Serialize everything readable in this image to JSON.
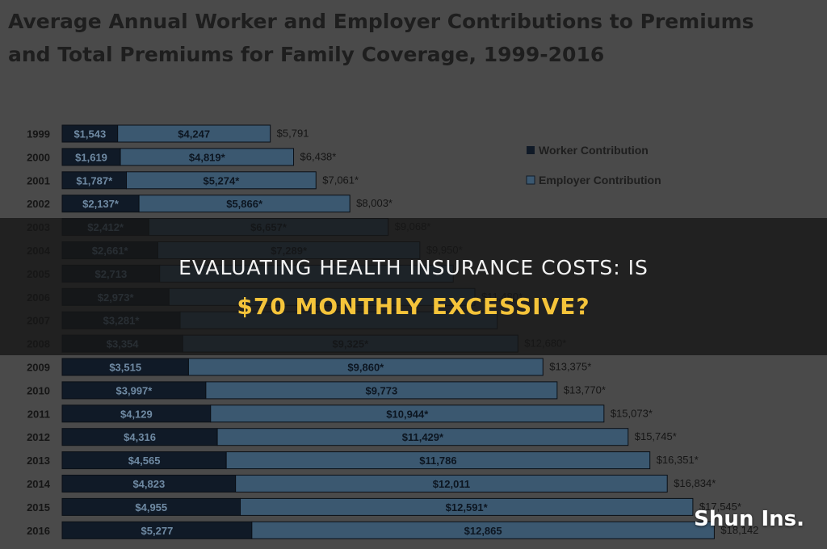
{
  "chart_data": {
    "type": "bar",
    "orientation": "horizontal",
    "stacked": true,
    "title_lines": [
      "Average Annual Worker and Employer Contributions to Premiums",
      "and Total Premiums for Family Coverage, 1999-2016"
    ],
    "categories": [
      "1999",
      "2000",
      "2001",
      "2002",
      "2003",
      "2004",
      "2005",
      "2006",
      "2007",
      "2008",
      "2009",
      "2010",
      "2011",
      "2012",
      "2013",
      "2014",
      "2015",
      "2016"
    ],
    "series": [
      {
        "name": "Worker Contribution",
        "color": "#101a27",
        "values": [
          1543,
          1619,
          1787,
          2137,
          2412,
          2661,
          2713,
          2973,
          3281,
          3354,
          3515,
          3997,
          4129,
          4316,
          4565,
          4823,
          4955,
          5277
        ],
        "labels": [
          "$1,543",
          "$1,619",
          "$1,787*",
          "$2,137*",
          "$2,412*",
          "$2,661*",
          "$2,713",
          "$2,973*",
          "$3,281*",
          "$3,354",
          "$3,515",
          "$3,997*",
          "$4,129",
          "$4,316",
          "$4,565",
          "$4,823",
          "$4,955",
          "$5,277"
        ]
      },
      {
        "name": "Employer Contribution",
        "color": "#3b5870",
        "values": [
          4247,
          4819,
          5274,
          5866,
          6657,
          7289,
          8167,
          8508,
          8824,
          9325,
          9860,
          9773,
          10944,
          11429,
          11786,
          12011,
          12591,
          12865
        ],
        "labels": [
          "$4,247",
          "$4,819*",
          "$5,274*",
          "$5,866*",
          "$6,657*",
          "$7,289*",
          "",
          "",
          "",
          "$9,325*",
          "$9,860*",
          "$9,773",
          "$10,944*",
          "$11,429*",
          "$11,786",
          "$12,011",
          "$12,591*",
          "$12,865"
        ]
      }
    ],
    "totals": [
      5791,
      6438,
      7061,
      8003,
      9068,
      9950,
      10880,
      11480,
      12106,
      12680,
      13375,
      13770,
      15073,
      15745,
      16351,
      16834,
      17545,
      18142
    ],
    "total_labels": [
      "$5,791",
      "$6,438*",
      "$7,061*",
      "$8,003*",
      "$9,068*",
      "$9,950*",
      "",
      "$11,480*",
      "",
      "$12,680*",
      "$13,375*",
      "$13,770*",
      "$15,073*",
      "$15,745*",
      "$16,351*",
      "$16,834*",
      "$17,545*",
      "$18,142"
    ],
    "xlim": [
      0,
      18200
    ],
    "legend_position": "top-right",
    "grid": false
  },
  "banner": {
    "line1": "EVALUATING HEALTH INSURANCE COSTS: IS",
    "line2": "$70 MONTHLY EXCESSIVE?"
  },
  "watermark": "Shun Ins."
}
